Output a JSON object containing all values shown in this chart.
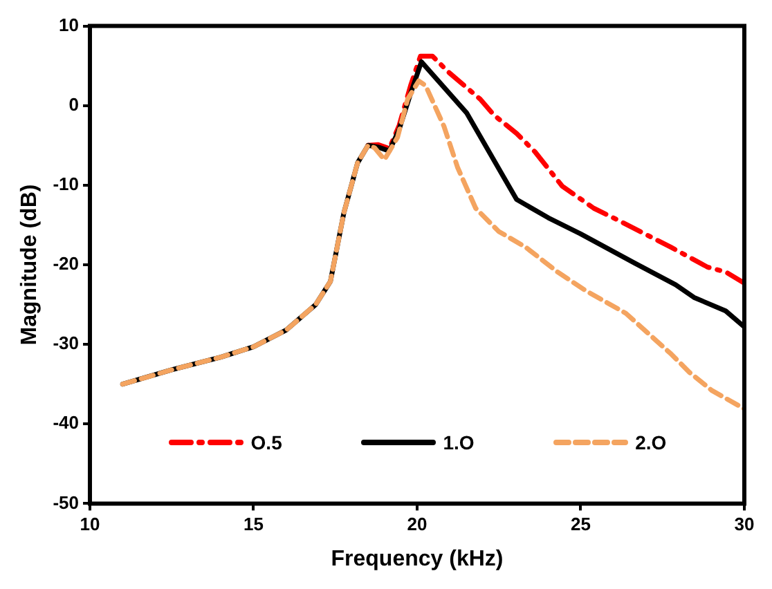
{
  "chart_data": {
    "type": "line",
    "xlabel": "Frequency (kHz)",
    "ylabel": "Magnitude (dB)",
    "xlim": [
      10,
      30
    ],
    "xticks": [
      10,
      15,
      20,
      25,
      30
    ],
    "ylim": [
      -50,
      10
    ],
    "yticks": [
      -50,
      -40,
      -30,
      -20,
      -10,
      0,
      10
    ],
    "grid": false,
    "legend": "bottom",
    "marker": "none",
    "series": [
      {
        "name": "O.5",
        "color": "#ff0000",
        "line_style": "dashdot",
        "x": [
          18.5,
          18.8,
          19.15,
          19.45,
          19.8,
          20.1,
          20.47,
          20.96,
          21.93,
          22.35,
          23.04,
          23.6,
          24.43,
          25.4,
          26.24,
          27.76,
          28.88,
          29.43,
          30
        ],
        "values": [
          -5,
          -4.9,
          -5.4,
          -2.5,
          2.5,
          6.2,
          6.2,
          4.2,
          0.8,
          -1.2,
          -3.5,
          -5.8,
          -10.1,
          -12.9,
          -14.6,
          -17.8,
          -20.3,
          -20.9,
          -22.3
        ]
      },
      {
        "name": "1.O",
        "color": "#000000",
        "line_style": "solid",
        "x": [
          11,
          12.5,
          14,
          15,
          16,
          16.9,
          17.35,
          17.76,
          18.18,
          18.5,
          18.8,
          19.15,
          19.45,
          19.8,
          20.13,
          21.51,
          23.04,
          24.01,
          24.99,
          26.65,
          27.9,
          28.46,
          29.43,
          30
        ],
        "values": [
          -35,
          -33.2,
          -31.6,
          -30.3,
          -28.2,
          -25,
          -22.1,
          -13.5,
          -7.2,
          -5,
          -5.2,
          -5.7,
          -3,
          1.5,
          5.5,
          -0.9,
          -11.8,
          -14.1,
          -16.1,
          -19.8,
          -22.5,
          -24.1,
          -25.8,
          -27.8
        ]
      },
      {
        "name": "2.O",
        "color": "#f4a460",
        "line_style": "dashed",
        "x": [
          11,
          12.5,
          14,
          15,
          16,
          16.9,
          17.35,
          17.76,
          18.18,
          18.5,
          18.7,
          19.0,
          19.4,
          19.71,
          20.05,
          20.26,
          20.82,
          21.24,
          21.79,
          22.49,
          23.32,
          24.29,
          25.13,
          26.38,
          27.76,
          28.32,
          29.01,
          30
        ],
        "values": [
          -35,
          -33.2,
          -31.6,
          -30.3,
          -28.2,
          -25,
          -22.1,
          -13.5,
          -7.2,
          -5,
          -5.3,
          -6.8,
          -4,
          0.8,
          3.1,
          2.5,
          -2.6,
          -7.8,
          -12.9,
          -15.8,
          -17.8,
          -20.9,
          -23.2,
          -26.1,
          -31.2,
          -33.5,
          -35.8,
          -38.1
        ]
      }
    ]
  }
}
